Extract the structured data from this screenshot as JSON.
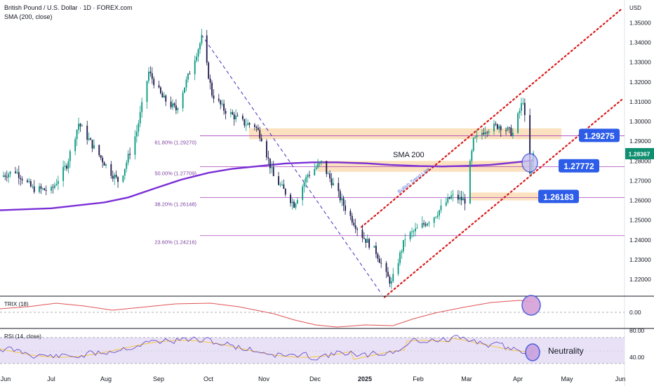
{
  "header": {
    "title": "British Pound / U.S. Dollar · 1D · FOREX.com",
    "indicator": "SMA (200, close)",
    "currency": "USD"
  },
  "chart_data": {
    "type": "candlestick",
    "symbol": "GBPUSD",
    "timeframe": "1D",
    "ylim": [
      1.2115,
      1.3615
    ],
    "y_ticks": [
      "1.35000",
      "1.34000",
      "1.33000",
      "1.32000",
      "1.31000",
      "1.30000",
      "1.29000",
      "1.28000",
      "1.27000",
      "1.26000",
      "1.25000",
      "1.24000",
      "1.23000",
      "1.22000"
    ],
    "x_ticks": [
      "Jun",
      "Jul",
      "Aug",
      "Sep",
      "Oct",
      "Nov",
      "Dec",
      "2025",
      "Feb",
      "Mar",
      "Apr",
      "May",
      "Jun"
    ],
    "last_price": "1.28367",
    "fibonacci": [
      {
        "label": "61.80% (1.29270)",
        "value": 1.2927
      },
      {
        "label": "50.00% (1.27709)",
        "value": 1.27709
      },
      {
        "label": "38.20% (1.26148)",
        "value": 1.26148
      },
      {
        "label": "23.60% (1.24216)",
        "value": 1.24216
      }
    ],
    "levels": [
      {
        "label": "1.29275",
        "value": 1.29275
      },
      {
        "label": "1.27772",
        "value": 1.27772
      },
      {
        "label": "1.26183",
        "value": 1.26183
      }
    ],
    "zones": [
      {
        "from": 1.291,
        "to": 1.2965
      },
      {
        "from": 1.2745,
        "to": 1.28
      },
      {
        "from": 1.26,
        "to": 1.264
      }
    ],
    "annotations": {
      "sma": "SMA 200",
      "trend": "Bullish Trend Line",
      "rsi": "Neutrality"
    },
    "sma200": [
      [
        "2024-06-01",
        1.255
      ],
      [
        "2024-07-01",
        1.256
      ],
      [
        "2024-08-01",
        1.259
      ],
      [
        "2024-08-15",
        1.2615
      ],
      [
        "2024-09-01",
        1.2665
      ],
      [
        "2024-09-15",
        1.2705
      ],
      [
        "2024-10-01",
        1.274
      ],
      [
        "2024-10-15",
        1.276
      ],
      [
        "2024-11-01",
        1.2775
      ],
      [
        "2024-11-15",
        1.2787
      ],
      [
        "2024-12-01",
        1.2793
      ],
      [
        "2024-12-15",
        1.2793
      ],
      [
        "2025-01-01",
        1.2788
      ],
      [
        "2025-01-15",
        1.278
      ],
      [
        "2025-02-01",
        1.2774
      ],
      [
        "2025-02-15",
        1.2772
      ],
      [
        "2025-03-01",
        1.2775
      ],
      [
        "2025-03-15",
        1.278
      ],
      [
        "2025-04-01",
        1.2795
      ],
      [
        "2025-04-09",
        1.2803
      ]
    ],
    "closes": [
      [
        "2024-06-01",
        1.272
      ],
      [
        "2024-06-10",
        1.275
      ],
      [
        "2024-06-20",
        1.266
      ],
      [
        "2024-07-01",
        1.265
      ],
      [
        "2024-07-10",
        1.278
      ],
      [
        "2024-07-17",
        1.299
      ],
      [
        "2024-07-25",
        1.288
      ],
      [
        "2024-08-05",
        1.274
      ],
      [
        "2024-08-10",
        1.269
      ],
      [
        "2024-08-20",
        1.295
      ],
      [
        "2024-08-27",
        1.325
      ],
      [
        "2024-09-04",
        1.312
      ],
      [
        "2024-09-12",
        1.306
      ],
      [
        "2024-09-20",
        1.325
      ],
      [
        "2024-09-27",
        1.342
      ],
      [
        "2024-10-03",
        1.314
      ],
      [
        "2024-10-10",
        1.306
      ],
      [
        "2024-10-22",
        1.299
      ],
      [
        "2024-10-28",
        1.298
      ],
      [
        "2024-11-01",
        1.292
      ],
      [
        "2024-11-08",
        1.272
      ],
      [
        "2024-11-15",
        1.264
      ],
      [
        "2024-11-20",
        1.258
      ],
      [
        "2024-11-28",
        1.273
      ],
      [
        "2024-12-06",
        1.279
      ],
      [
        "2024-12-13",
        1.268
      ],
      [
        "2024-12-20",
        1.256
      ],
      [
        "2024-12-30",
        1.242
      ],
      [
        "2025-01-07",
        1.234
      ],
      [
        "2025-01-13",
        1.222
      ],
      [
        "2025-01-16",
        1.218
      ],
      [
        "2025-01-24",
        1.241
      ],
      [
        "2025-02-01",
        1.246
      ],
      [
        "2025-02-10",
        1.252
      ],
      [
        "2025-02-20",
        1.262
      ],
      [
        "2025-02-28",
        1.26
      ],
      [
        "2025-03-05",
        1.29
      ],
      [
        "2025-03-12",
        1.296
      ],
      [
        "2025-03-20",
        1.298
      ],
      [
        "2025-03-28",
        1.294
      ],
      [
        "2025-04-03",
        1.311
      ],
      [
        "2025-04-07",
        1.273
      ],
      [
        "2025-04-09",
        1.2837
      ]
    ],
    "trix": {
      "label": "TRIX (18)",
      "tick": "0.00"
    },
    "rsi": {
      "label": "RSI (14, close)",
      "ticks": [
        "80.00",
        "40.00"
      ]
    }
  }
}
